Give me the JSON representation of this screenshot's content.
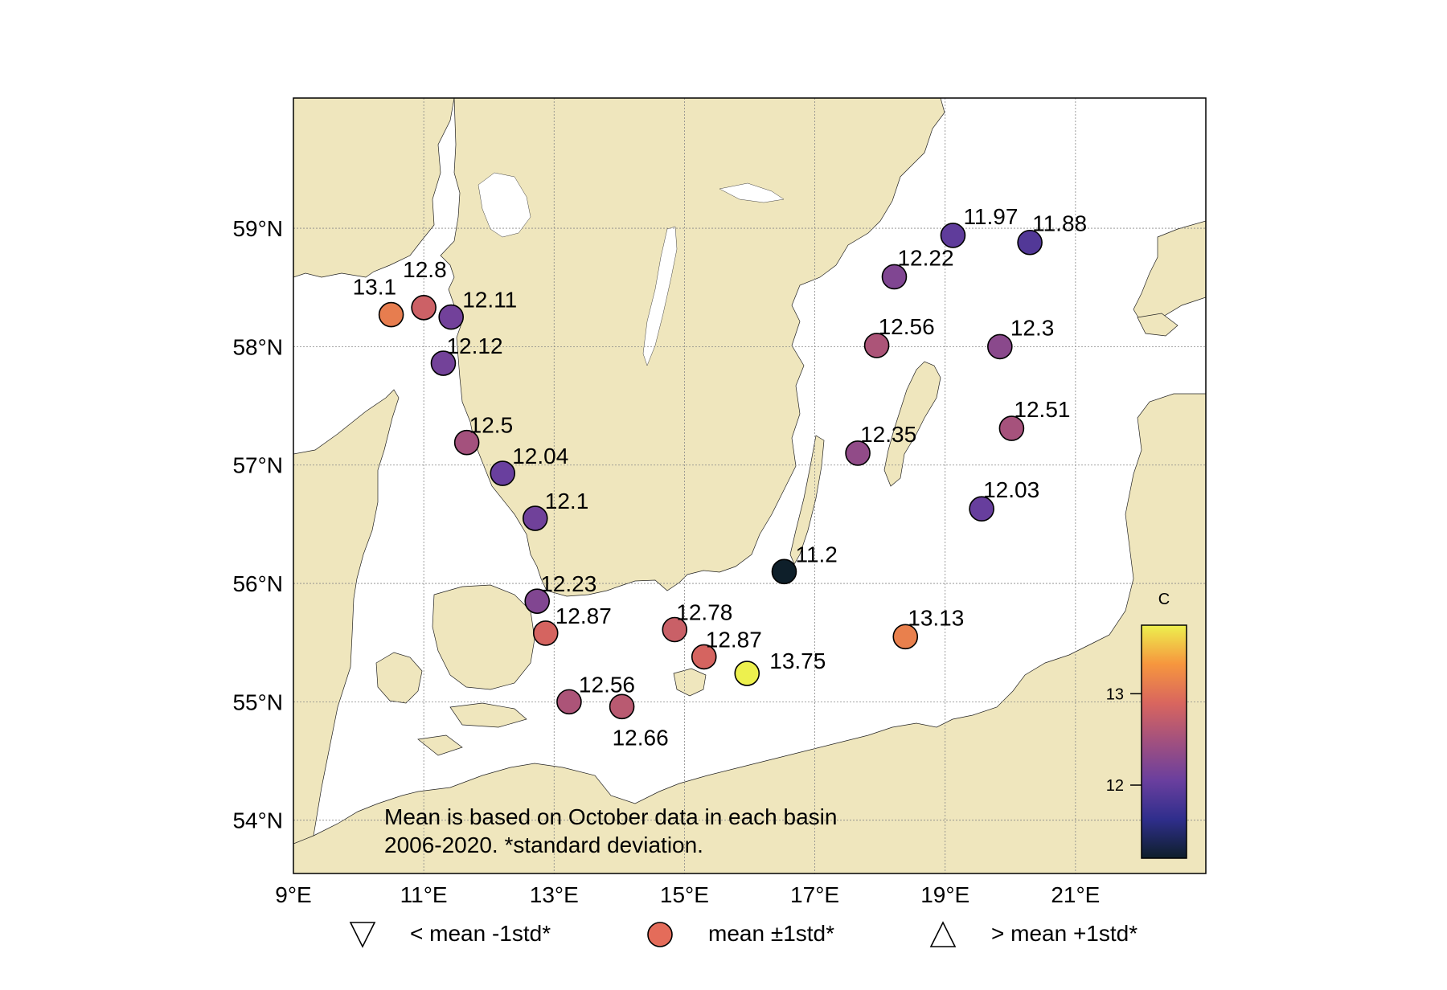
{
  "figure": {
    "axis_labels": {
      "lat": [
        "54°N",
        "55°N",
        "56°N",
        "57°N",
        "58°N",
        "59°N"
      ],
      "lon": [
        "9°E",
        "11°E",
        "13°E",
        "15°E",
        "17°E",
        "19°E",
        "21°E"
      ]
    },
    "note_line1": "Mean is based on October data in each basin",
    "note_line2": "2006-2020. *standard deviation.",
    "colors": {
      "land": "#efe6bd",
      "sea": "#ffffff",
      "grid": "#888888"
    }
  },
  "chart_data": {
    "type": "scatter",
    "title": "",
    "extent": {
      "lon_min": 9,
      "lon_max": 23,
      "lat_min": 53.55,
      "lat_max": 60.1
    },
    "lat_ticks": [
      54,
      55,
      56,
      57,
      58,
      59
    ],
    "lon_ticks": [
      9,
      11,
      13,
      15,
      17,
      19,
      21
    ],
    "stations": [
      {
        "lon": 10.5,
        "lat": 58.27,
        "value": 13.1,
        "label": "13.1"
      },
      {
        "lon": 11.0,
        "lat": 58.33,
        "value": 12.8,
        "label": "12.8"
      },
      {
        "lon": 11.42,
        "lat": 58.25,
        "value": 12.11,
        "label": "12.11"
      },
      {
        "lon": 11.3,
        "lat": 57.86,
        "value": 12.12,
        "label": "12.12"
      },
      {
        "lon": 11.66,
        "lat": 57.19,
        "value": 12.5,
        "label": "12.5"
      },
      {
        "lon": 12.21,
        "lat": 56.93,
        "value": 12.04,
        "label": "12.04"
      },
      {
        "lon": 12.71,
        "lat": 56.55,
        "value": 12.1,
        "label": "12.1"
      },
      {
        "lon": 12.74,
        "lat": 55.85,
        "value": 12.23,
        "label": "12.23"
      },
      {
        "lon": 12.87,
        "lat": 55.58,
        "value": 12.87,
        "label": "12.87"
      },
      {
        "lon": 13.23,
        "lat": 55.0,
        "value": 12.56,
        "label": "12.56"
      },
      {
        "lon": 14.04,
        "lat": 54.96,
        "value": 12.66,
        "label": "12.66"
      },
      {
        "lon": 14.85,
        "lat": 55.61,
        "value": 12.78,
        "label": "12.78"
      },
      {
        "lon": 15.3,
        "lat": 55.38,
        "value": 12.87,
        "label": "12.87"
      },
      {
        "lon": 15.96,
        "lat": 55.24,
        "value": 13.75,
        "label": "13.75"
      },
      {
        "lon": 16.53,
        "lat": 56.1,
        "value": 11.2,
        "label": "11.2"
      },
      {
        "lon": 18.39,
        "lat": 55.55,
        "value": 13.13,
        "label": "13.13"
      },
      {
        "lon": 17.66,
        "lat": 57.1,
        "value": 12.35,
        "label": "12.35"
      },
      {
        "lon": 17.95,
        "lat": 58.01,
        "value": 12.56,
        "label": "12.56"
      },
      {
        "lon": 18.22,
        "lat": 58.59,
        "value": 12.22,
        "label": "12.22"
      },
      {
        "lon": 19.12,
        "lat": 58.94,
        "value": 11.97,
        "label": "11.97"
      },
      {
        "lon": 20.3,
        "lat": 58.88,
        "value": 11.88,
        "label": "11.88"
      },
      {
        "lon": 19.84,
        "lat": 58.0,
        "value": 12.3,
        "label": "12.3"
      },
      {
        "lon": 20.02,
        "lat": 57.31,
        "value": 12.51,
        "label": "12.51"
      },
      {
        "lon": 19.56,
        "lat": 56.63,
        "value": 12.03,
        "label": "12.03"
      }
    ],
    "colorbar": {
      "label": "C",
      "min": 11.2,
      "max": 13.75,
      "ticks": [
        12,
        13
      ],
      "tick_labels": [
        "12",
        "13"
      ],
      "colors": [
        "#0e1f2a",
        "#2f2e8c",
        "#6a3f9e",
        "#a1507f",
        "#d9665e",
        "#f6963e",
        "#edf04e"
      ]
    },
    "legend": [
      {
        "symbol": "triangle-down",
        "label": "< mean -1std*"
      },
      {
        "symbol": "circle",
        "label": "mean ±1std*",
        "color": "#e46c5a"
      },
      {
        "symbol": "triangle-up",
        "label": "> mean +1std*"
      }
    ]
  }
}
